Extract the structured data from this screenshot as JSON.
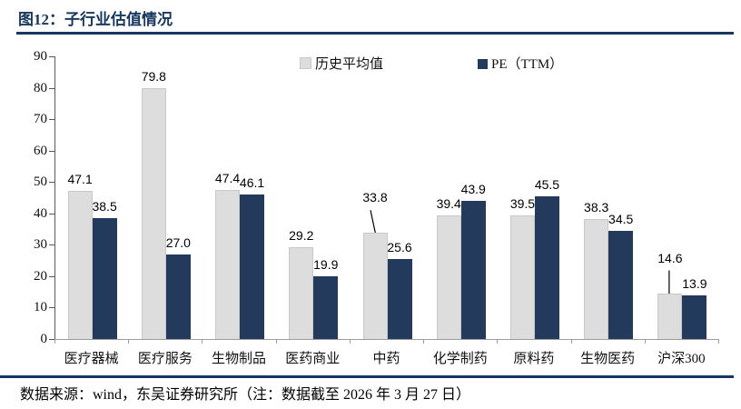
{
  "figure": {
    "title": "图12：子行业估值情况",
    "source_note": "数据来源：wind，东吴证券研究所（注：数据截至 2026 年 3 月 27 日）"
  },
  "colors": {
    "title": "#17375E",
    "rule_top": "#17375E",
    "rule_bottom": "#17375E",
    "gray_bar": "#DDDDDD",
    "gray_bar_border": "#C8C8C8",
    "navy_bar": "#243A5C",
    "leader_line": "#000000"
  },
  "chart_data": {
    "type": "bar",
    "title": "子行业估值情况",
    "categories": [
      "医疗器械",
      "医疗服务",
      "生物制品",
      "医药商业",
      "中药",
      "化学制药",
      "原料药",
      "生物医药",
      "沪深300"
    ],
    "series": [
      {
        "name": "历史平均值",
        "values": [
          47.1,
          79.8,
          47.4,
          29.2,
          33.8,
          39.4,
          39.5,
          38.3,
          14.6
        ]
      },
      {
        "name": "PE（TTM）",
        "values": [
          38.5,
          27.0,
          46.1,
          19.9,
          25.6,
          43.9,
          45.5,
          34.5,
          13.9
        ]
      }
    ],
    "ylim": [
      0,
      90
    ],
    "ytick_step": 10,
    "grid": false,
    "legend_position": "top-center",
    "label_format": "one-decimal",
    "callouts": [
      {
        "series": 0,
        "index": 4,
        "dy": 26,
        "line": "diagonal"
      },
      {
        "series": 0,
        "index": 8,
        "dy": 26,
        "line": "vertical"
      }
    ]
  }
}
